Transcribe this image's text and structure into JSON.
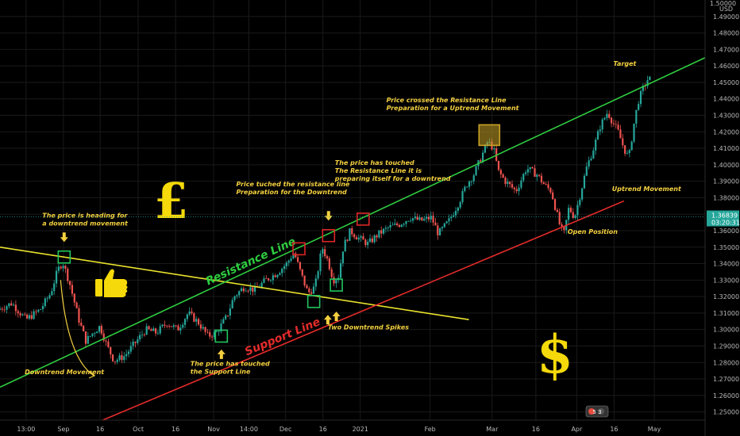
{
  "chart_data": {
    "type": "candlestick",
    "y_axis": {
      "unit_label": "USD",
      "top_tick": "1.50000",
      "range": [
        1.245,
        1.5
      ],
      "ticks": [
        {
          "label": "1.49000",
          "value": 1.49
        },
        {
          "label": "1.48000",
          "value": 1.48
        },
        {
          "label": "1.47000",
          "value": 1.47
        },
        {
          "label": "1.46000",
          "value": 1.46
        },
        {
          "label": "1.45000",
          "value": 1.45
        },
        {
          "label": "1.44000",
          "value": 1.44
        },
        {
          "label": "1.43000",
          "value": 1.43
        },
        {
          "label": "1.42000",
          "value": 1.42
        },
        {
          "label": "1.41000",
          "value": 1.41
        },
        {
          "label": "1.40000",
          "value": 1.4
        },
        {
          "label": "1.39000",
          "value": 1.39
        },
        {
          "label": "1.38000",
          "value": 1.38
        },
        {
          "label": "1.37000",
          "value": 1.37
        },
        {
          "label": "1.36000",
          "value": 1.36
        },
        {
          "label": "1.35000",
          "value": 1.35
        },
        {
          "label": "1.34000",
          "value": 1.34
        },
        {
          "label": "1.33000",
          "value": 1.33
        },
        {
          "label": "1.32000",
          "value": 1.32
        },
        {
          "label": "1.31000",
          "value": 1.31
        },
        {
          "label": "1.30000",
          "value": 1.3
        },
        {
          "label": "1.29000",
          "value": 1.29
        },
        {
          "label": "1.28000",
          "value": 1.28
        },
        {
          "label": "1.27000",
          "value": 1.27
        },
        {
          "label": "1.26000",
          "value": 1.26
        },
        {
          "label": "1.25000",
          "value": 1.25
        }
      ],
      "last_price": "1.36839",
      "last_price_value": 1.3684,
      "countdown": "03:20:31"
    },
    "x_axis": {
      "range": [
        0,
        100
      ],
      "ticks": [
        {
          "label": "13:00",
          "x": 3.7
        },
        {
          "label": "Sep",
          "x": 9.0
        },
        {
          "label": "16",
          "x": 14.2
        },
        {
          "label": "Oct",
          "x": 19.6
        },
        {
          "label": "16",
          "x": 24.9
        },
        {
          "label": "Nov",
          "x": 30.3
        },
        {
          "label": "14:00",
          "x": 35.3
        },
        {
          "label": "Dec",
          "x": 40.5
        },
        {
          "label": "16",
          "x": 45.8
        },
        {
          "label": "2021",
          "x": 51.1
        },
        {
          "label": "Feb",
          "x": 61.0
        },
        {
          "label": "Mar",
          "x": 69.8
        },
        {
          "label": "16",
          "x": 76.0
        },
        {
          "label": "Apr",
          "x": 81.8
        },
        {
          "label": "16",
          "x": 87.1
        },
        {
          "label": "May",
          "x": 92.8
        }
      ]
    },
    "price_path": [
      [
        0,
        1.312
      ],
      [
        2,
        1.316
      ],
      [
        4,
        1.306
      ],
      [
        6,
        1.312
      ],
      [
        7.5,
        1.322
      ],
      [
        8.5,
        1.336
      ],
      [
        9.2,
        1.341
      ],
      [
        10.2,
        1.328
      ],
      [
        11.5,
        1.306
      ],
      [
        12.5,
        1.293
      ],
      [
        13.5,
        1.298
      ],
      [
        14.5,
        1.302
      ],
      [
        15.5,
        1.29
      ],
      [
        16.5,
        1.281
      ],
      [
        18,
        1.284
      ],
      [
        19.5,
        1.292
      ],
      [
        21,
        1.3
      ],
      [
        22.5,
        1.298
      ],
      [
        24,
        1.304
      ],
      [
        25.5,
        1.3
      ],
      [
        27,
        1.31
      ],
      [
        28.5,
        1.304
      ],
      [
        29.8,
        1.296
      ],
      [
        31,
        1.298
      ],
      [
        32.5,
        1.308
      ],
      [
        33.5,
        1.32
      ],
      [
        35,
        1.326
      ],
      [
        36.5,
        1.324
      ],
      [
        38,
        1.33
      ],
      [
        39.5,
        1.334
      ],
      [
        41,
        1.34
      ],
      [
        42,
        1.347
      ],
      [
        43,
        1.334
      ],
      [
        44,
        1.322
      ],
      [
        45,
        1.326
      ],
      [
        46,
        1.35
      ],
      [
        46.8,
        1.342
      ],
      [
        47.6,
        1.33
      ],
      [
        48.3,
        1.332
      ],
      [
        49,
        1.35
      ],
      [
        50,
        1.36
      ],
      [
        51,
        1.356
      ],
      [
        52.5,
        1.352
      ],
      [
        54,
        1.358
      ],
      [
        55.5,
        1.362
      ],
      [
        57,
        1.364
      ],
      [
        58.5,
        1.368
      ],
      [
        60,
        1.366
      ],
      [
        61.5,
        1.368
      ],
      [
        62.5,
        1.358
      ],
      [
        64,
        1.366
      ],
      [
        65.5,
        1.378
      ],
      [
        66.5,
        1.388
      ],
      [
        67.5,
        1.394
      ],
      [
        68.5,
        1.404
      ],
      [
        69.5,
        1.414
      ],
      [
        70.3,
        1.41
      ],
      [
        71,
        1.396
      ],
      [
        72,
        1.39
      ],
      [
        73.5,
        1.384
      ],
      [
        75,
        1.398
      ],
      [
        76.5,
        1.394
      ],
      [
        77.5,
        1.388
      ],
      [
        78.5,
        1.384
      ],
      [
        79.2,
        1.372
      ],
      [
        79.8,
        1.362
      ],
      [
        80.3,
        1.358
      ],
      [
        81,
        1.374
      ],
      [
        81.8,
        1.368
      ],
      [
        82.5,
        1.38
      ],
      [
        83.5,
        1.398
      ],
      [
        84.5,
        1.41
      ],
      [
        85.5,
        1.424
      ],
      [
        86.5,
        1.432
      ],
      [
        87.2,
        1.426
      ],
      [
        88,
        1.42
      ],
      [
        88.8,
        1.41
      ],
      [
        89.5,
        1.404
      ],
      [
        90.2,
        1.424
      ],
      [
        90.8,
        1.438
      ],
      [
        91.5,
        1.446
      ],
      [
        92.2,
        1.452
      ]
    ],
    "lines": {
      "resistance": {
        "from": [
          0,
          1.265
        ],
        "to": [
          100,
          1.465
        ]
      },
      "support": {
        "from": [
          4,
          1.226
        ],
        "to": [
          88.5,
          1.378
        ]
      },
      "trend": {
        "from": [
          0,
          1.35
        ],
        "to": [
          66.5,
          1.306
        ]
      }
    },
    "labels": {
      "resistance": "Resistance Line",
      "support": "Support Line"
    },
    "annotations": [
      {
        "lines": [
          "The price is heading for",
          "a downtrend movement"
        ],
        "x": 6.0,
        "y": 1.368
      },
      {
        "lines": [
          "Downtrend Movement"
        ],
        "x": 3.5,
        "y": 1.273
      },
      {
        "lines": [
          "The price has touched",
          "the Support Line"
        ],
        "x": 27.0,
        "y": 1.278
      },
      {
        "lines": [
          "Price tuched the resistance line",
          "Preparation for the Downtrend"
        ],
        "x": 33.5,
        "y": 1.387
      },
      {
        "lines": [
          "The price has touched",
          "The Resistance Line it is",
          "preparing itself for a downtrend"
        ],
        "x": 47.5,
        "y": 1.4
      },
      {
        "lines": [
          "Two Downtrend Spikes"
        ],
        "x": 46.5,
        "y": 1.3
      },
      {
        "lines": [
          "Price crossed the Resistance Line",
          "Preparation for a Uptrend Movement"
        ],
        "x": 54.8,
        "y": 1.438
      },
      {
        "lines": [
          "Target"
        ],
        "x": 87.0,
        "y": 1.46
      },
      {
        "lines": [
          "Uptrend Movement"
        ],
        "x": 86.8,
        "y": 1.384
      },
      {
        "lines": [
          "Open Position"
        ],
        "x": 80.5,
        "y": 1.358
      }
    ],
    "markers": [
      {
        "type": "green",
        "x": 9.1,
        "y": 1.344
      },
      {
        "type": "green",
        "x": 31.4,
        "y": 1.296
      },
      {
        "type": "green",
        "x": 44.5,
        "y": 1.317
      },
      {
        "type": "green",
        "x": 47.7,
        "y": 1.327
      },
      {
        "type": "red",
        "x": 42.4,
        "y": 1.349
      },
      {
        "type": "red",
        "x": 46.6,
        "y": 1.357
      },
      {
        "type": "red",
        "x": 51.5,
        "y": 1.367
      },
      {
        "type": "gold",
        "x": 69.4,
        "y": 1.418
      }
    ],
    "arrows": [
      {
        "x": 9.1,
        "y": 1.356,
        "dir": "down"
      },
      {
        "x": 46.6,
        "y": 1.369,
        "dir": "down"
      },
      {
        "x": 31.4,
        "y": 1.285,
        "dir": "up"
      },
      {
        "x": 47.7,
        "y": 1.308,
        "dir": "up"
      },
      {
        "x": 46.5,
        "y": 1.306,
        "dir": "up"
      }
    ],
    "badge": {
      "text": "5 3"
    },
    "colors": {
      "up": "#26a69a",
      "down": "#ef5350",
      "resistance": "#2ecc40",
      "support": "#e52b2b",
      "trend": "#e9e22c",
      "annotation": "#f4d03f",
      "box_green": "#22c55e",
      "box_red": "#dc2626",
      "box_gold": "#c9a227",
      "price_tag": "#26a69a",
      "currency": "#f5d90a"
    },
    "icons": {
      "pound": "pound-sign-icon",
      "dollar": "dollar-sign-icon",
      "thumb": "thumbs-up-icon"
    },
    "currency_glyphs": {
      "pound": "£",
      "dollar": "$"
    }
  }
}
